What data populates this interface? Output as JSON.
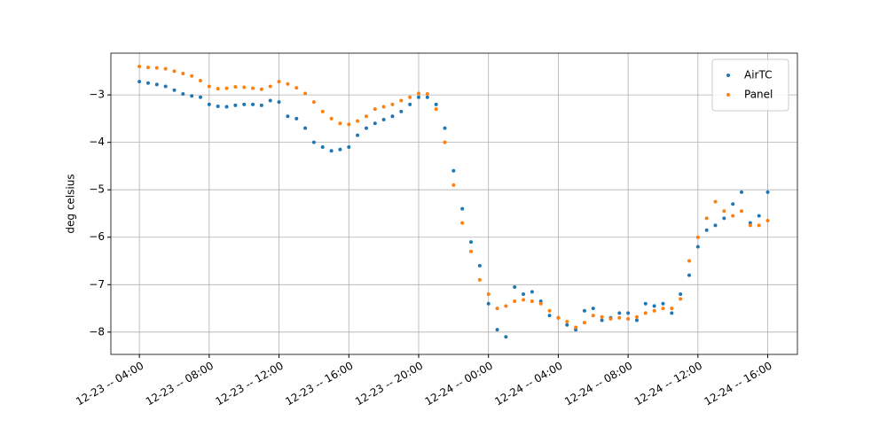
{
  "chart_data": {
    "type": "scatter",
    "y_label": "deg celsius",
    "x": [
      "12-23 -- 04:00",
      "12-23 -- 04:30",
      "12-23 -- 05:00",
      "12-23 -- 05:30",
      "12-23 -- 06:00",
      "12-23 -- 06:30",
      "12-23 -- 07:00",
      "12-23 -- 07:30",
      "12-23 -- 08:00",
      "12-23 -- 08:30",
      "12-23 -- 09:00",
      "12-23 -- 09:30",
      "12-23 -- 10:00",
      "12-23 -- 10:30",
      "12-23 -- 11:00",
      "12-23 -- 11:30",
      "12-23 -- 12:00",
      "12-23 -- 12:30",
      "12-23 -- 13:00",
      "12-23 -- 13:30",
      "12-23 -- 14:00",
      "12-23 -- 14:30",
      "12-23 -- 15:00",
      "12-23 -- 15:30",
      "12-23 -- 16:00",
      "12-23 -- 16:30",
      "12-23 -- 17:00",
      "12-23 -- 17:30",
      "12-23 -- 18:00",
      "12-23 -- 18:30",
      "12-23 -- 19:00",
      "12-23 -- 19:30",
      "12-23 -- 20:00",
      "12-23 -- 20:30",
      "12-23 -- 21:00",
      "12-23 -- 21:30",
      "12-23 -- 22:00",
      "12-23 -- 22:30",
      "12-23 -- 23:00",
      "12-23 -- 23:30",
      "12-24 -- 00:00",
      "12-24 -- 00:30",
      "12-24 -- 01:00",
      "12-24 -- 01:30",
      "12-24 -- 02:00",
      "12-24 -- 02:30",
      "12-24 -- 03:00",
      "12-24 -- 03:30",
      "12-24 -- 04:00",
      "12-24 -- 04:30",
      "12-24 -- 05:00",
      "12-24 -- 05:30",
      "12-24 -- 06:00",
      "12-24 -- 06:30",
      "12-24 -- 07:00",
      "12-24 -- 07:30",
      "12-24 -- 08:00",
      "12-24 -- 08:30",
      "12-24 -- 09:00",
      "12-24 -- 09:30",
      "12-24 -- 10:00",
      "12-24 -- 10:30",
      "12-24 -- 11:00",
      "12-24 -- 11:30",
      "12-24 -- 12:00",
      "12-24 -- 12:30",
      "12-24 -- 13:00",
      "12-24 -- 13:30",
      "12-24 -- 14:00",
      "12-24 -- 14:30",
      "12-24 -- 15:00",
      "12-24 -- 15:30",
      "12-24 -- 16:00"
    ],
    "series": [
      {
        "name": "AirTC",
        "color": "#1f77b4",
        "values": [
          -2.72,
          -2.75,
          -2.78,
          -2.82,
          -2.9,
          -2.98,
          -3.02,
          -3.05,
          -3.2,
          -3.24,
          -3.25,
          -3.22,
          -3.2,
          -3.2,
          -3.22,
          -3.12,
          -3.15,
          -3.45,
          -3.5,
          -3.7,
          -4.0,
          -4.1,
          -4.18,
          -4.15,
          -4.1,
          -3.85,
          -3.7,
          -3.6,
          -3.52,
          -3.45,
          -3.35,
          -3.2,
          -3.05,
          -3.05,
          -3.2,
          -3.7,
          -4.6,
          -5.4,
          -6.1,
          -6.6,
          -7.4,
          -7.95,
          -8.1,
          -7.05,
          -7.2,
          -7.15,
          -7.35,
          -7.65,
          -7.7,
          -7.85,
          -7.95,
          -7.55,
          -7.5,
          -7.75,
          -7.7,
          -7.6,
          -7.6,
          -7.75,
          -7.4,
          -7.45,
          -7.4,
          -7.6,
          -7.2,
          -6.8,
          -6.2,
          -5.85,
          -5.75,
          -5.6,
          -5.3,
          -5.05,
          -5.7,
          -5.55,
          -5.05
        ]
      },
      {
        "name": "Panel",
        "color": "#ff7f0e",
        "values": [
          -2.4,
          -2.42,
          -2.43,
          -2.45,
          -2.5,
          -2.55,
          -2.6,
          -2.7,
          -2.82,
          -2.87,
          -2.86,
          -2.83,
          -2.84,
          -2.86,
          -2.88,
          -2.82,
          -2.72,
          -2.77,
          -2.85,
          -2.97,
          -3.15,
          -3.35,
          -3.5,
          -3.6,
          -3.62,
          -3.55,
          -3.45,
          -3.3,
          -3.25,
          -3.2,
          -3.12,
          -3.05,
          -2.97,
          -2.98,
          -3.3,
          -4.0,
          -4.9,
          -5.7,
          -6.3,
          -6.9,
          -7.2,
          -7.5,
          -7.45,
          -7.35,
          -7.32,
          -7.35,
          -7.4,
          -7.55,
          -7.7,
          -7.78,
          -7.9,
          -7.8,
          -7.65,
          -7.68,
          -7.72,
          -7.7,
          -7.72,
          -7.68,
          -7.6,
          -7.55,
          -7.5,
          -7.5,
          -7.3,
          -6.5,
          -6.0,
          -5.6,
          -5.25,
          -5.45,
          -5.55,
          -5.45,
          -5.75,
          -5.75,
          -5.65
        ]
      }
    ],
    "xlim": [
      "12-23 -- 02:22",
      "12-24 -- 17:42"
    ],
    "xticks": [
      "12-23 -- 04:00",
      "12-23 -- 08:00",
      "12-23 -- 12:00",
      "12-23 -- 16:00",
      "12-23 -- 20:00",
      "12-24 -- 00:00",
      "12-24 -- 04:00",
      "12-24 -- 08:00",
      "12-24 -- 12:00",
      "12-24 -- 16:00"
    ],
    "ylim": [
      -8.47,
      -2.12
    ],
    "yticks": [
      {
        "value": -8,
        "label": "−8"
      },
      {
        "value": -7,
        "label": "−7"
      },
      {
        "value": -6,
        "label": "−6"
      },
      {
        "value": -5,
        "label": "−5"
      },
      {
        "value": -4,
        "label": "−4"
      },
      {
        "value": -3,
        "label": "−3"
      }
    ],
    "grid": true,
    "legend": "upper-right"
  }
}
